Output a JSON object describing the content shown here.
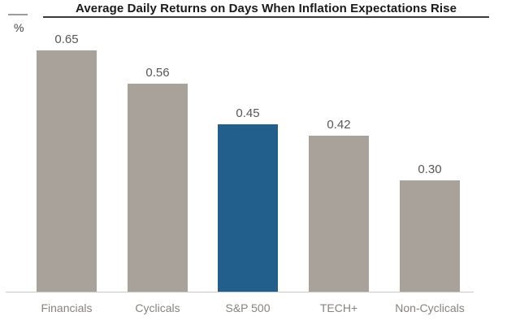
{
  "header": {
    "title": "Average Daily Returns on Days When Inflation Expectations Rise"
  },
  "axis": {
    "unit_label": "%"
  },
  "chart_data": {
    "type": "bar",
    "title": "Average Daily Returns on Days When Inflation Expectations Rise",
    "xlabel": "",
    "ylabel": "%",
    "categories": [
      "Financials",
      "Cyclicals",
      "S&P 500",
      "TECH+",
      "Non-Cyclicals"
    ],
    "values": [
      0.65,
      0.56,
      0.45,
      0.42,
      0.3
    ],
    "value_labels": [
      "0.65",
      "0.56",
      "0.45",
      "0.42",
      "0.30"
    ],
    "highlight_index": 2,
    "ylim": [
      0,
      0.78
    ],
    "grid": false,
    "legend": false,
    "colors": {
      "bar_default": "#a8a29b",
      "bar_highlight": "#235f8d",
      "title_text": "#1a1a1a",
      "value_label_text": "#575757",
      "category_label_text": "#87837d",
      "baseline": "#c9c9c9"
    }
  }
}
